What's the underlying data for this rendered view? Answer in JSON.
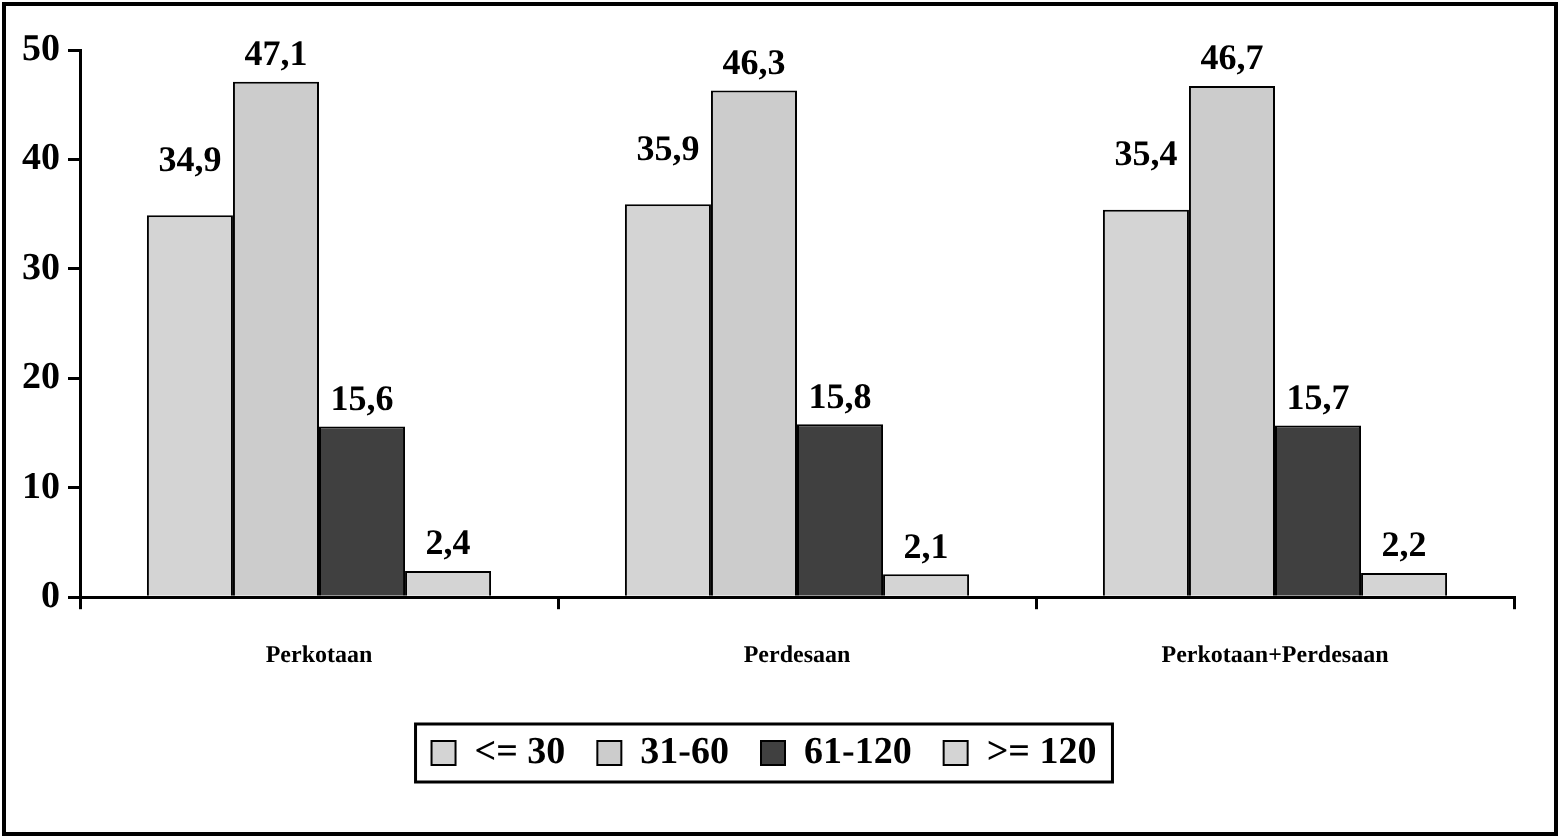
{
  "chart_data": {
    "type": "bar",
    "categories": [
      "Perkotaan",
      "Perdesaan",
      "Perkotaan+Perdesaan"
    ],
    "series": [
      {
        "name": "<= 30",
        "color": "#d4d4d4",
        "values": [
          34.9,
          35.9,
          35.4
        ],
        "value_labels": [
          "34,9",
          "35,9",
          "35,4"
        ]
      },
      {
        "name": "31-60",
        "color": "#cccccc",
        "values": [
          47.1,
          46.3,
          46.7
        ],
        "value_labels": [
          "47,1",
          "46,3",
          "46,7"
        ]
      },
      {
        "name": "61-120",
        "color": "#404040",
        "values": [
          15.6,
          15.8,
          15.7
        ],
        "value_labels": [
          "15,6",
          "15,8",
          "15,7"
        ]
      },
      {
        "name": ">= 120",
        "color": "#d4d4d4",
        "values": [
          2.4,
          2.1,
          2.2
        ],
        "value_labels": [
          "2,4",
          "2,1",
          "2,2"
        ]
      }
    ],
    "ylim": [
      0,
      50
    ],
    "yticks": [
      0,
      10,
      20,
      30,
      40,
      50
    ],
    "grid": false,
    "legend": "bottom"
  }
}
